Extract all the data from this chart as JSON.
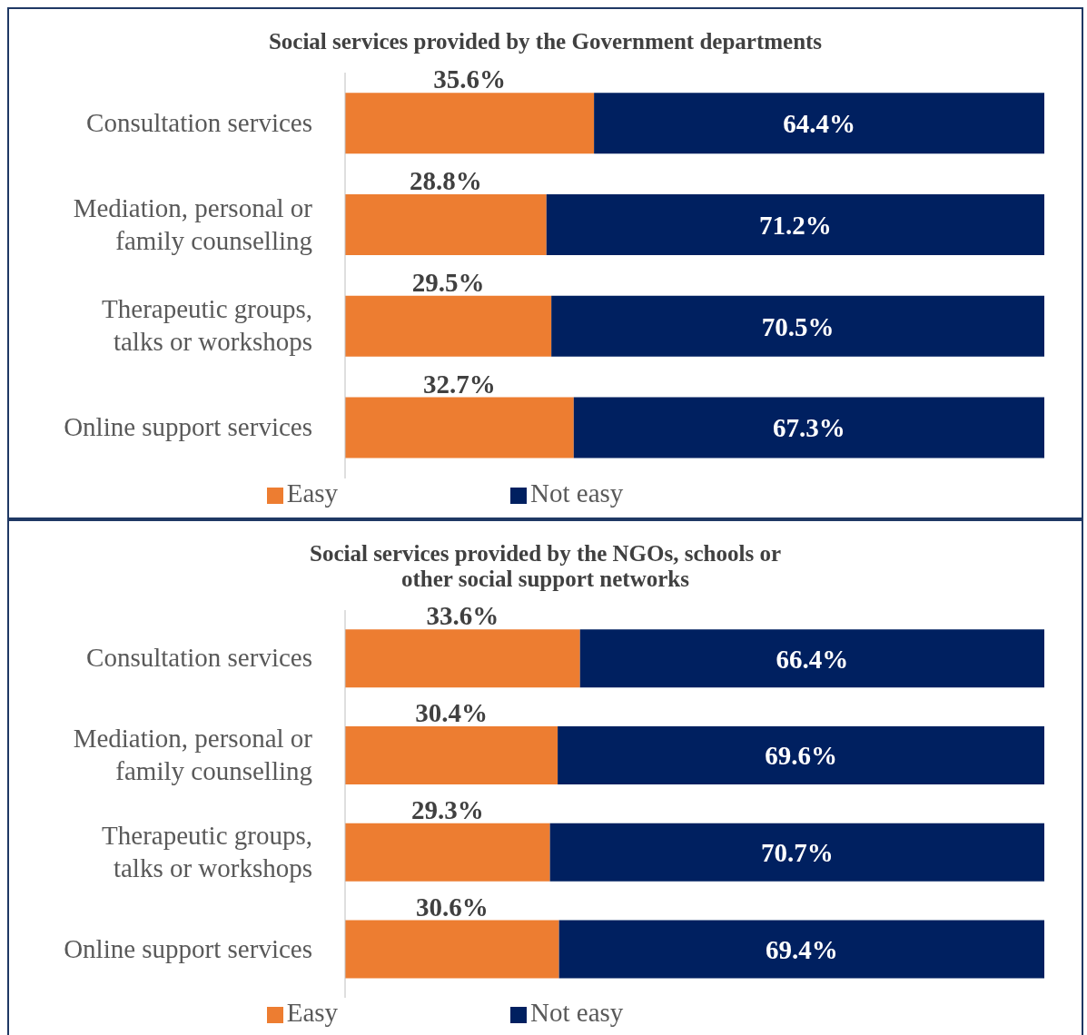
{
  "chart_data": [
    {
      "type": "bar",
      "orientation": "horizontal",
      "stacked": true,
      "title": "Social services provided by the Government departments",
      "categories": [
        "Consultation services",
        "Mediation, personal or family counselling",
        "Therapeutic groups, talks or workshops",
        "Online support services"
      ],
      "series": [
        {
          "name": "Easy",
          "color": "#ed7d31",
          "values": [
            35.6,
            28.8,
            29.5,
            32.7
          ],
          "value_labels": [
            "35.6%",
            "28.8%",
            "29.5%",
            "32.7%"
          ]
        },
        {
          "name": "Not easy",
          "color": "#002060",
          "values": [
            64.4,
            71.2,
            70.5,
            67.3
          ],
          "value_labels": [
            "64.4%",
            "71.2%",
            "70.5%",
            "67.3%"
          ]
        }
      ],
      "xlim": [
        0,
        100
      ],
      "tick_labels": "y",
      "grid": false,
      "legend": "bottom"
    },
    {
      "type": "bar",
      "orientation": "horizontal",
      "stacked": true,
      "title": "Social services provided by the NGOs, schools or other social support networks",
      "categories": [
        "Consultation services",
        "Mediation, personal or family counselling",
        "Therapeutic groups, talks or workshops",
        "Online support services"
      ],
      "series": [
        {
          "name": "Easy",
          "color": "#ed7d31",
          "values": [
            33.6,
            30.4,
            29.3,
            30.6
          ],
          "value_labels": [
            "33.6%",
            "30.4%",
            "29.3%",
            "30.6%"
          ]
        },
        {
          "name": "Not easy",
          "color": "#002060",
          "values": [
            66.4,
            69.6,
            70.7,
            69.4
          ],
          "value_labels": [
            "66.4%",
            "69.6%",
            "70.7%",
            "69.4%"
          ]
        }
      ],
      "xlim": [
        0,
        100
      ],
      "tick_labels": "y",
      "grid": false,
      "legend": "bottom"
    }
  ]
}
